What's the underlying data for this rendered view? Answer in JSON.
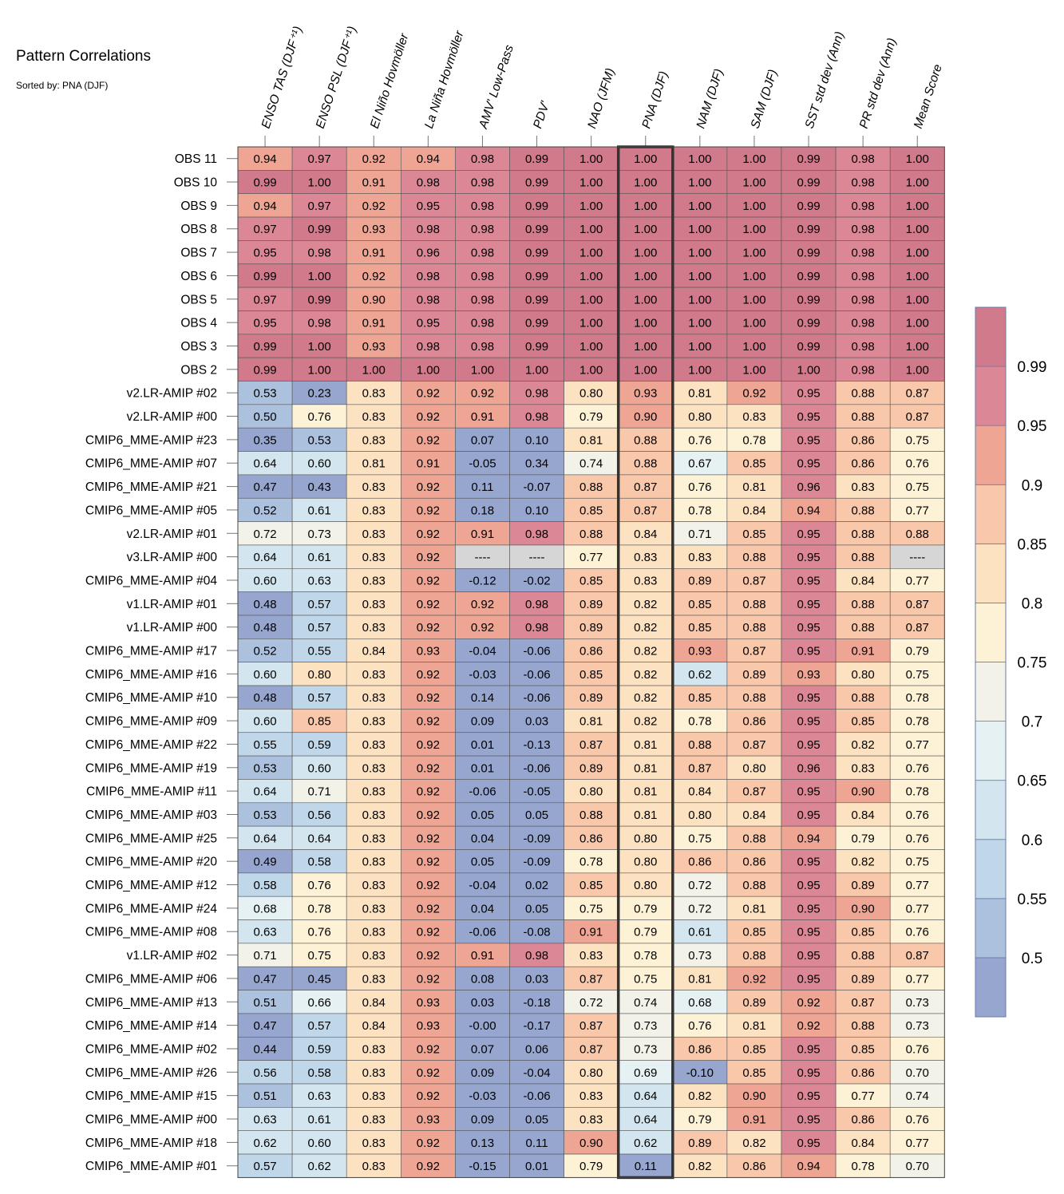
{
  "title": "Pattern Correlations",
  "subtitle": "Sorted by: PNA (DJF)",
  "chart_data": {
    "type": "heatmap",
    "columns": [
      "ENSO TAS (DJF⁺¹)",
      "ENSO PSL (DJF⁺¹)",
      "El Niño Hovmöller",
      "La Niña Hovmöller",
      "AMV' Low-Pass",
      "PDV'",
      "NAO (JFM)",
      "PNA (DJF)",
      "NAM (DJF)",
      "SAM (DJF)",
      "SST std dev (Ann)",
      "PR std dev (Ann)",
      "Mean Score"
    ],
    "highlighted_column": "PNA (DJF)",
    "rows": [
      {
        "label": "OBS 11",
        "values": [
          "0.94",
          "0.97",
          "0.92",
          "0.94",
          "0.98",
          "0.99",
          "1.00",
          "1.00",
          "1.00",
          "1.00",
          "0.99",
          "0.98",
          "1.00"
        ]
      },
      {
        "label": "OBS 10",
        "values": [
          "0.99",
          "1.00",
          "0.91",
          "0.98",
          "0.98",
          "0.99",
          "1.00",
          "1.00",
          "1.00",
          "1.00",
          "0.99",
          "0.98",
          "1.00"
        ]
      },
      {
        "label": "OBS 9",
        "values": [
          "0.94",
          "0.97",
          "0.92",
          "0.95",
          "0.98",
          "0.99",
          "1.00",
          "1.00",
          "1.00",
          "1.00",
          "0.99",
          "0.98",
          "1.00"
        ]
      },
      {
        "label": "OBS 8",
        "values": [
          "0.97",
          "0.99",
          "0.93",
          "0.98",
          "0.98",
          "0.99",
          "1.00",
          "1.00",
          "1.00",
          "1.00",
          "0.99",
          "0.98",
          "1.00"
        ]
      },
      {
        "label": "OBS 7",
        "values": [
          "0.95",
          "0.98",
          "0.91",
          "0.96",
          "0.98",
          "0.99",
          "1.00",
          "1.00",
          "1.00",
          "1.00",
          "0.99",
          "0.98",
          "1.00"
        ]
      },
      {
        "label": "OBS 6",
        "values": [
          "0.99",
          "1.00",
          "0.92",
          "0.98",
          "0.98",
          "0.99",
          "1.00",
          "1.00",
          "1.00",
          "1.00",
          "0.99",
          "0.98",
          "1.00"
        ]
      },
      {
        "label": "OBS 5",
        "values": [
          "0.97",
          "0.99",
          "0.90",
          "0.98",
          "0.98",
          "0.99",
          "1.00",
          "1.00",
          "1.00",
          "1.00",
          "0.99",
          "0.98",
          "1.00"
        ]
      },
      {
        "label": "OBS 4",
        "values": [
          "0.95",
          "0.98",
          "0.91",
          "0.95",
          "0.98",
          "0.99",
          "1.00",
          "1.00",
          "1.00",
          "1.00",
          "0.99",
          "0.98",
          "1.00"
        ]
      },
      {
        "label": "OBS 3",
        "values": [
          "0.99",
          "1.00",
          "0.93",
          "0.98",
          "0.98",
          "0.99",
          "1.00",
          "1.00",
          "1.00",
          "1.00",
          "0.99",
          "0.98",
          "1.00"
        ]
      },
      {
        "label": "OBS 2",
        "values": [
          "0.99",
          "1.00",
          "1.00",
          "1.00",
          "1.00",
          "1.00",
          "1.00",
          "1.00",
          "1.00",
          "1.00",
          "1.00",
          "0.98",
          "1.00"
        ]
      },
      {
        "label": "v2.LR-AMIP  #02",
        "values": [
          "0.53",
          "0.23",
          "0.83",
          "0.92",
          "0.92",
          "0.98",
          "0.80",
          "0.93",
          "0.81",
          "0.92",
          "0.95",
          "0.88",
          "0.87"
        ]
      },
      {
        "label": "v2.LR-AMIP  #00",
        "values": [
          "0.50",
          "0.76",
          "0.83",
          "0.92",
          "0.91",
          "0.98",
          "0.79",
          "0.90",
          "0.80",
          "0.83",
          "0.95",
          "0.88",
          "0.87"
        ]
      },
      {
        "label": "CMIP6_MME-AMIP  #23",
        "values": [
          "0.35",
          "0.53",
          "0.83",
          "0.92",
          "0.07",
          "0.10",
          "0.81",
          "0.88",
          "0.76",
          "0.78",
          "0.95",
          "0.86",
          "0.75"
        ]
      },
      {
        "label": "CMIP6_MME-AMIP  #07",
        "values": [
          "0.64",
          "0.60",
          "0.81",
          "0.91",
          "-0.05",
          "0.34",
          "0.74",
          "0.88",
          "0.67",
          "0.85",
          "0.95",
          "0.86",
          "0.76"
        ]
      },
      {
        "label": "CMIP6_MME-AMIP  #21",
        "values": [
          "0.47",
          "0.43",
          "0.83",
          "0.92",
          "0.11",
          "-0.07",
          "0.88",
          "0.87",
          "0.76",
          "0.81",
          "0.96",
          "0.83",
          "0.75"
        ]
      },
      {
        "label": "CMIP6_MME-AMIP  #05",
        "values": [
          "0.52",
          "0.61",
          "0.83",
          "0.92",
          "0.18",
          "0.10",
          "0.85",
          "0.87",
          "0.78",
          "0.84",
          "0.94",
          "0.88",
          "0.77"
        ]
      },
      {
        "label": "v2.LR-AMIP  #01",
        "values": [
          "0.72",
          "0.73",
          "0.83",
          "0.92",
          "0.91",
          "0.98",
          "0.88",
          "0.84",
          "0.71",
          "0.85",
          "0.95",
          "0.88",
          "0.88"
        ]
      },
      {
        "label": "v3.LR-AMIP  #00",
        "values": [
          "0.64",
          "0.61",
          "0.83",
          "0.92",
          "----",
          "----",
          "0.77",
          "0.83",
          "0.83",
          "0.88",
          "0.95",
          "0.88",
          "----"
        ]
      },
      {
        "label": "CMIP6_MME-AMIP  #04",
        "values": [
          "0.60",
          "0.63",
          "0.83",
          "0.92",
          "-0.12",
          "-0.02",
          "0.85",
          "0.83",
          "0.89",
          "0.87",
          "0.95",
          "0.84",
          "0.77"
        ]
      },
      {
        "label": "v1.LR-AMIP  #01",
        "values": [
          "0.48",
          "0.57",
          "0.83",
          "0.92",
          "0.92",
          "0.98",
          "0.89",
          "0.82",
          "0.85",
          "0.88",
          "0.95",
          "0.88",
          "0.87"
        ]
      },
      {
        "label": "v1.LR-AMIP  #00",
        "values": [
          "0.48",
          "0.57",
          "0.83",
          "0.92",
          "0.92",
          "0.98",
          "0.89",
          "0.82",
          "0.85",
          "0.88",
          "0.95",
          "0.88",
          "0.87"
        ]
      },
      {
        "label": "CMIP6_MME-AMIP  #17",
        "values": [
          "0.52",
          "0.55",
          "0.84",
          "0.93",
          "-0.04",
          "-0.06",
          "0.86",
          "0.82",
          "0.93",
          "0.87",
          "0.95",
          "0.91",
          "0.79"
        ]
      },
      {
        "label": "CMIP6_MME-AMIP  #16",
        "values": [
          "0.60",
          "0.80",
          "0.83",
          "0.92",
          "-0.03",
          "-0.06",
          "0.85",
          "0.82",
          "0.62",
          "0.89",
          "0.93",
          "0.80",
          "0.75"
        ]
      },
      {
        "label": "CMIP6_MME-AMIP  #10",
        "values": [
          "0.48",
          "0.57",
          "0.83",
          "0.92",
          "0.14",
          "-0.06",
          "0.89",
          "0.82",
          "0.85",
          "0.88",
          "0.95",
          "0.88",
          "0.78"
        ]
      },
      {
        "label": "CMIP6_MME-AMIP  #09",
        "values": [
          "0.60",
          "0.85",
          "0.83",
          "0.92",
          "0.09",
          "0.03",
          "0.81",
          "0.82",
          "0.78",
          "0.86",
          "0.95",
          "0.85",
          "0.78"
        ]
      },
      {
        "label": "CMIP6_MME-AMIP  #22",
        "values": [
          "0.55",
          "0.59",
          "0.83",
          "0.92",
          "0.01",
          "-0.13",
          "0.87",
          "0.81",
          "0.88",
          "0.87",
          "0.95",
          "0.82",
          "0.77"
        ]
      },
      {
        "label": "CMIP6_MME-AMIP  #19",
        "values": [
          "0.53",
          "0.60",
          "0.83",
          "0.92",
          "0.01",
          "-0.06",
          "0.89",
          "0.81",
          "0.87",
          "0.80",
          "0.96",
          "0.83",
          "0.76"
        ]
      },
      {
        "label": "CMIP6_MME-AMIP  #11",
        "values": [
          "0.64",
          "0.71",
          "0.83",
          "0.92",
          "-0.06",
          "-0.05",
          "0.80",
          "0.81",
          "0.84",
          "0.87",
          "0.95",
          "0.90",
          "0.78"
        ]
      },
      {
        "label": "CMIP6_MME-AMIP  #03",
        "values": [
          "0.53",
          "0.56",
          "0.83",
          "0.92",
          "0.05",
          "0.05",
          "0.88",
          "0.81",
          "0.80",
          "0.84",
          "0.95",
          "0.84",
          "0.76"
        ]
      },
      {
        "label": "CMIP6_MME-AMIP  #25",
        "values": [
          "0.64",
          "0.64",
          "0.83",
          "0.92",
          "0.04",
          "-0.09",
          "0.86",
          "0.80",
          "0.75",
          "0.88",
          "0.94",
          "0.79",
          "0.76"
        ]
      },
      {
        "label": "CMIP6_MME-AMIP  #20",
        "values": [
          "0.49",
          "0.58",
          "0.83",
          "0.92",
          "0.05",
          "-0.09",
          "0.78",
          "0.80",
          "0.86",
          "0.86",
          "0.95",
          "0.82",
          "0.75"
        ]
      },
      {
        "label": "CMIP6_MME-AMIP  #12",
        "values": [
          "0.58",
          "0.76",
          "0.83",
          "0.92",
          "-0.04",
          "0.02",
          "0.85",
          "0.80",
          "0.72",
          "0.88",
          "0.95",
          "0.89",
          "0.77"
        ]
      },
      {
        "label": "CMIP6_MME-AMIP  #24",
        "values": [
          "0.68",
          "0.78",
          "0.83",
          "0.92",
          "0.04",
          "0.05",
          "0.75",
          "0.79",
          "0.72",
          "0.81",
          "0.95",
          "0.90",
          "0.77"
        ]
      },
      {
        "label": "CMIP6_MME-AMIP  #08",
        "values": [
          "0.63",
          "0.76",
          "0.83",
          "0.92",
          "-0.06",
          "-0.08",
          "0.91",
          "0.79",
          "0.61",
          "0.85",
          "0.95",
          "0.85",
          "0.76"
        ]
      },
      {
        "label": "v1.LR-AMIP  #02",
        "values": [
          "0.71",
          "0.75",
          "0.83",
          "0.92",
          "0.91",
          "0.98",
          "0.83",
          "0.78",
          "0.73",
          "0.88",
          "0.95",
          "0.88",
          "0.87"
        ]
      },
      {
        "label": "CMIP6_MME-AMIP  #06",
        "values": [
          "0.47",
          "0.45",
          "0.83",
          "0.92",
          "0.08",
          "0.03",
          "0.87",
          "0.75",
          "0.81",
          "0.92",
          "0.95",
          "0.89",
          "0.77"
        ]
      },
      {
        "label": "CMIP6_MME-AMIP  #13",
        "values": [
          "0.51",
          "0.66",
          "0.84",
          "0.93",
          "0.03",
          "-0.18",
          "0.72",
          "0.74",
          "0.68",
          "0.89",
          "0.92",
          "0.87",
          "0.73"
        ]
      },
      {
        "label": "CMIP6_MME-AMIP  #14",
        "values": [
          "0.47",
          "0.57",
          "0.84",
          "0.93",
          "-0.00",
          "-0.17",
          "0.87",
          "0.73",
          "0.76",
          "0.81",
          "0.92",
          "0.88",
          "0.73"
        ]
      },
      {
        "label": "CMIP6_MME-AMIP  #02",
        "values": [
          "0.44",
          "0.59",
          "0.83",
          "0.92",
          "0.07",
          "0.06",
          "0.87",
          "0.73",
          "0.86",
          "0.85",
          "0.95",
          "0.85",
          "0.76"
        ]
      },
      {
        "label": "CMIP6_MME-AMIP  #26",
        "values": [
          "0.56",
          "0.58",
          "0.83",
          "0.92",
          "0.09",
          "-0.04",
          "0.80",
          "0.69",
          "-0.10",
          "0.85",
          "0.95",
          "0.86",
          "0.70"
        ]
      },
      {
        "label": "CMIP6_MME-AMIP  #15",
        "values": [
          "0.51",
          "0.63",
          "0.83",
          "0.92",
          "-0.03",
          "-0.06",
          "0.83",
          "0.64",
          "0.82",
          "0.90",
          "0.95",
          "0.77",
          "0.74"
        ]
      },
      {
        "label": "CMIP6_MME-AMIP  #00",
        "values": [
          "0.63",
          "0.61",
          "0.83",
          "0.93",
          "0.09",
          "0.05",
          "0.83",
          "0.64",
          "0.79",
          "0.91",
          "0.95",
          "0.86",
          "0.76"
        ]
      },
      {
        "label": "CMIP6_MME-AMIP  #18",
        "values": [
          "0.62",
          "0.60",
          "0.83",
          "0.92",
          "0.13",
          "0.11",
          "0.90",
          "0.62",
          "0.89",
          "0.82",
          "0.95",
          "0.84",
          "0.77"
        ]
      },
      {
        "label": "CMIP6_MME-AMIP  #01",
        "values": [
          "0.57",
          "0.62",
          "0.83",
          "0.92",
          "-0.15",
          "0.01",
          "0.79",
          "0.11",
          "0.82",
          "0.86",
          "0.94",
          "0.78",
          "0.70"
        ]
      }
    ],
    "colorbar": {
      "ticks": [
        "0.99",
        "0.95",
        "0.9",
        "0.85",
        "0.8",
        "0.75",
        "0.7",
        "0.65",
        "0.6",
        "0.55",
        "0.5"
      ],
      "levels": [
        0.5,
        0.55,
        0.6,
        0.65,
        0.7,
        0.75,
        0.8,
        0.85,
        0.9,
        0.95,
        0.99
      ],
      "colors": [
        "#97a6cf",
        "#acc1de",
        "#c0d7e9",
        "#d3e6ef",
        "#e6f1f4",
        "#f3f2e9",
        "#fdf2d5",
        "#fde2c1",
        "#f9c8ab",
        "#eea593",
        "#db8796",
        "#d07a8c"
      ],
      "missing_color": "#d6d6d6"
    }
  }
}
